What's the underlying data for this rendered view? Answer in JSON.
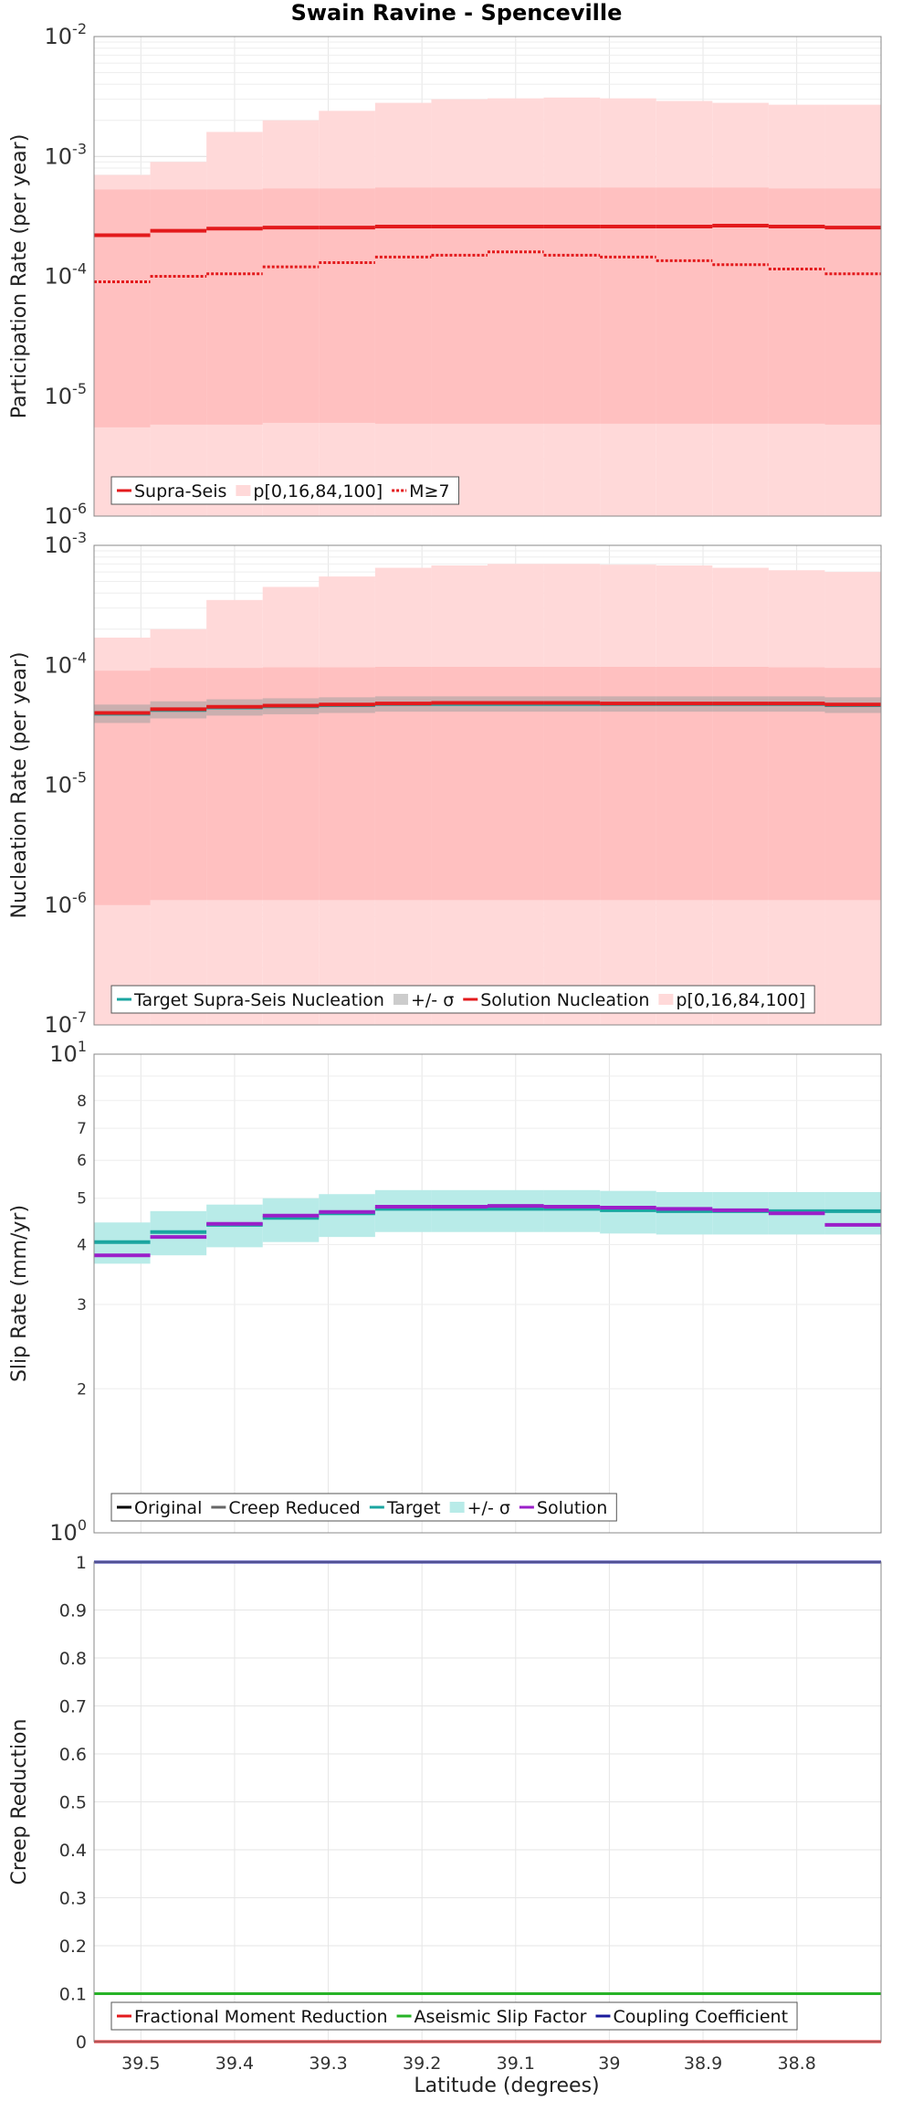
{
  "title": "Swain Ravine - Spenceville",
  "xlabel": "Latitude (degrees)",
  "colors": {
    "red": "#e31a1c",
    "pink_band": "#ffd9d9",
    "pink_band_inner": "#ffc0c0",
    "gray_band": "#c8c8c8",
    "teal": "#1aa5a0",
    "teal_band": "#b8ebe8",
    "purple": "#9b1fc9",
    "green": "#27b327",
    "navy": "#1a1a9c"
  },
  "chart_data": [
    {
      "type": "line",
      "name": "participation",
      "ylabel": "Participation Rate (per year)",
      "yscale": "log",
      "ylim": [
        1e-06,
        0.01
      ],
      "xlim": [
        39.55,
        38.71
      ],
      "x_edges": [
        39.55,
        39.49,
        39.43,
        39.37,
        39.31,
        39.25,
        39.19,
        39.13,
        39.07,
        39.01,
        38.95,
        38.89,
        38.83,
        38.77,
        38.71
      ],
      "legend": [
        "Supra-Seis",
        "p[0,16,84,100]",
        "M≥7"
      ],
      "series": [
        {
          "name": "Supra-Seis",
          "values": [
            0.00022,
            0.00024,
            0.00025,
            0.000255,
            0.000255,
            0.00026,
            0.00026,
            0.00026,
            0.00026,
            0.00026,
            0.00026,
            0.000265,
            0.00026,
            0.000255
          ]
        },
        {
          "name": "M≥7",
          "values": [
            9e-05,
            0.0001,
            0.000105,
            0.00012,
            0.00013,
            0.000145,
            0.00015,
            0.00016,
            0.00015,
            0.000145,
            0.000135,
            0.000125,
            0.000115,
            0.000105
          ]
        }
      ],
      "band_outer": {
        "low": [
          1e-06,
          1e-06,
          1e-06,
          1e-06,
          1e-06,
          1e-06,
          1e-06,
          1e-06,
          1e-06,
          1e-06,
          1e-06,
          1e-06,
          1e-06,
          1e-06
        ],
        "high": [
          0.0007,
          0.0009,
          0.0016,
          0.002,
          0.0024,
          0.0028,
          0.003,
          0.00305,
          0.0031,
          0.00305,
          0.0029,
          0.0028,
          0.0027,
          0.0027
        ]
      },
      "band_inner": {
        "low": [
          5.5e-06,
          5.8e-06,
          5.8e-06,
          6e-06,
          6e-06,
          5.9e-06,
          5.9e-06,
          5.9e-06,
          5.9e-06,
          5.9e-06,
          5.9e-06,
          5.9e-06,
          5.9e-06,
          5.8e-06
        ],
        "high": [
          0.00053,
          0.00053,
          0.00053,
          0.00054,
          0.00054,
          0.00055,
          0.00055,
          0.00055,
          0.00055,
          0.00055,
          0.00055,
          0.00055,
          0.00054,
          0.00054
        ]
      }
    },
    {
      "type": "line",
      "name": "nucleation",
      "ylabel": "Nucleation Rate (per year)",
      "yscale": "log",
      "ylim": [
        1e-07,
        0.001
      ],
      "xlim": [
        39.55,
        38.71
      ],
      "x_edges": [
        39.55,
        39.49,
        39.43,
        39.37,
        39.31,
        39.25,
        39.19,
        39.13,
        39.07,
        39.01,
        38.95,
        38.89,
        38.83,
        38.77,
        38.71
      ],
      "legend": [
        "Target Supra-Seis Nucleation",
        "+/- σ",
        "Solution Nucleation",
        "p[0,16,84,100]"
      ],
      "series": [
        {
          "name": "Target Supra-Seis Nucleation",
          "values": [
            3.9e-05,
            4.2e-05,
            4.4e-05,
            4.5e-05,
            4.6e-05,
            4.7e-05,
            4.7e-05,
            4.7e-05,
            4.7e-05,
            4.7e-05,
            4.7e-05,
            4.7e-05,
            4.7e-05,
            4.6e-05
          ]
        },
        {
          "name": "Solution Nucleation",
          "values": [
            4e-05,
            4.3e-05,
            4.5e-05,
            4.6e-05,
            4.7e-05,
            4.8e-05,
            4.85e-05,
            4.85e-05,
            4.85e-05,
            4.8e-05,
            4.8e-05,
            4.8e-05,
            4.8e-05,
            4.7e-05
          ]
        }
      ],
      "sigma_band": {
        "low": [
          3.3e-05,
          3.6e-05,
          3.8e-05,
          3.9e-05,
          4e-05,
          4.1e-05,
          4.1e-05,
          4.1e-05,
          4.1e-05,
          4.1e-05,
          4.1e-05,
          4.1e-05,
          4.1e-05,
          4e-05
        ],
        "high": [
          4.7e-05,
          5e-05,
          5.2e-05,
          5.3e-05,
          5.4e-05,
          5.5e-05,
          5.5e-05,
          5.5e-05,
          5.5e-05,
          5.5e-05,
          5.5e-05,
          5.5e-05,
          5.5e-05,
          5.4e-05
        ]
      },
      "band_outer": {
        "low": [
          1e-07,
          1e-07,
          1e-07,
          1e-07,
          1e-07,
          1e-07,
          1e-07,
          1e-07,
          1e-07,
          1e-07,
          1e-07,
          1e-07,
          1e-07,
          1e-07
        ],
        "high": [
          0.00017,
          0.0002,
          0.00035,
          0.00045,
          0.00055,
          0.00065,
          0.00068,
          0.0007,
          0.0007,
          0.00069,
          0.00068,
          0.00065,
          0.00062,
          0.0006
        ]
      },
      "band_inner": {
        "low": [
          1e-06,
          1.1e-06,
          1.1e-06,
          1.1e-06,
          1.1e-06,
          1.1e-06,
          1.1e-06,
          1.1e-06,
          1.1e-06,
          1.1e-06,
          1.1e-06,
          1.1e-06,
          1.1e-06,
          1.1e-06
        ],
        "high": [
          9e-05,
          9.5e-05,
          9.5e-05,
          9.6e-05,
          9.6e-05,
          9.7e-05,
          9.7e-05,
          9.7e-05,
          9.7e-05,
          9.7e-05,
          9.7e-05,
          9.7e-05,
          9.6e-05,
          9.5e-05
        ]
      }
    },
    {
      "type": "line",
      "name": "slip",
      "ylabel": "Slip Rate (mm/yr)",
      "yscale": "log",
      "ylim": [
        1,
        10
      ],
      "xlim": [
        39.55,
        38.71
      ],
      "x_edges": [
        39.55,
        39.49,
        39.43,
        39.37,
        39.31,
        39.25,
        39.19,
        39.13,
        39.07,
        39.01,
        38.95,
        38.89,
        38.83,
        38.77,
        38.71
      ],
      "legend": [
        "Original",
        "Creep Reduced",
        "Target",
        "+/- σ",
        "Solution"
      ],
      "series": [
        {
          "name": "Target",
          "values": [
            4.05,
            4.25,
            4.4,
            4.55,
            4.65,
            4.75,
            4.75,
            4.75,
            4.75,
            4.72,
            4.7,
            4.7,
            4.7,
            4.7
          ]
        },
        {
          "name": "Solution",
          "values": [
            3.8,
            4.15,
            4.42,
            4.6,
            4.68,
            4.8,
            4.8,
            4.82,
            4.8,
            4.78,
            4.75,
            4.72,
            4.65,
            4.4
          ]
        }
      ],
      "sigma_band": {
        "low": [
          3.65,
          3.8,
          3.95,
          4.05,
          4.15,
          4.25,
          4.25,
          4.25,
          4.25,
          4.22,
          4.2,
          4.2,
          4.2,
          4.2
        ],
        "high": [
          4.45,
          4.7,
          4.85,
          5.0,
          5.1,
          5.2,
          5.2,
          5.2,
          5.2,
          5.18,
          5.15,
          5.15,
          5.15,
          5.15
        ]
      }
    },
    {
      "type": "line",
      "name": "creep",
      "ylabel": "Creep Reduction",
      "yscale": "linear",
      "ylim": [
        0,
        1
      ],
      "xlim": [
        39.55,
        38.71
      ],
      "yticks": [
        "0",
        "0.1",
        "0.2",
        "0.3",
        "0.4",
        "0.5",
        "0.6",
        "0.7",
        "0.8",
        "0.9",
        "1"
      ],
      "xticks": [
        "39.5",
        "39.4",
        "39.3",
        "39.2",
        "39.1",
        "39",
        "38.9",
        "38.8"
      ],
      "legend": [
        "Fractional Moment Reduction",
        "Aseismic Slip Factor",
        "Coupling Coefficient"
      ],
      "series": [
        {
          "name": "Fractional Moment Reduction",
          "values": [
            0,
            0
          ]
        },
        {
          "name": "Aseismic Slip Factor",
          "values": [
            0.1,
            0.1
          ]
        },
        {
          "name": "Coupling Coefficient",
          "values": [
            1,
            1
          ]
        }
      ]
    }
  ]
}
